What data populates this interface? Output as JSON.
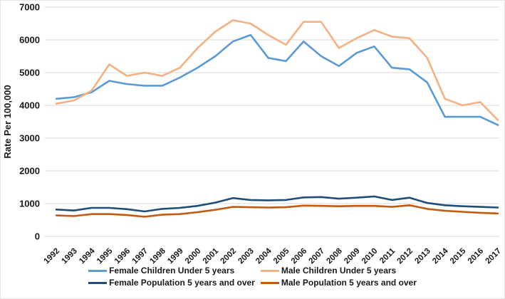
{
  "chart_data": {
    "type": "line",
    "ylabel": "Rate Per 100,000",
    "xlabel": "",
    "ylim": [
      0,
      7000
    ],
    "yticks": [
      0,
      1000,
      2000,
      3000,
      4000,
      5000,
      6000,
      7000
    ],
    "grid": "horizontal",
    "gridline_color": "#d9d9d9",
    "legend_position": "bottom",
    "x": [
      1992,
      1993,
      1994,
      1995,
      1996,
      1997,
      1998,
      1999,
      2000,
      2001,
      2002,
      2003,
      2004,
      2005,
      2006,
      2007,
      2008,
      2009,
      2010,
      2011,
      2012,
      2013,
      2014,
      2015,
      2016,
      2017
    ],
    "series": [
      {
        "name": "Female Children Under 5 years",
        "color": "#5B9BD5",
        "values": [
          4200,
          4250,
          4400,
          4750,
          4650,
          4600,
          4600,
          4850,
          5150,
          5500,
          5950,
          6150,
          5450,
          5350,
          5950,
          5500,
          5200,
          5600,
          5800,
          5150,
          5100,
          4700,
          3650,
          3650,
          3650,
          3400
        ]
      },
      {
        "name": "Male Children Under 5 years",
        "color": "#F4B183",
        "values": [
          4050,
          4150,
          4450,
          5250,
          4900,
          5000,
          4900,
          5150,
          5750,
          6250,
          6600,
          6500,
          6150,
          5850,
          6550,
          6550,
          5750,
          6050,
          6300,
          6100,
          6050,
          5450,
          4200,
          4000,
          4100,
          3550
        ]
      },
      {
        "name": "Female Population 5 years and over",
        "color": "#1F4E79",
        "values": [
          820,
          790,
          870,
          870,
          830,
          760,
          840,
          870,
          930,
          1030,
          1170,
          1110,
          1100,
          1110,
          1190,
          1200,
          1150,
          1180,
          1220,
          1110,
          1180,
          1020,
          950,
          920,
          900,
          880
        ]
      },
      {
        "name": "Male Population 5 years and over",
        "color": "#C55A11",
        "values": [
          640,
          620,
          680,
          680,
          650,
          600,
          660,
          680,
          740,
          810,
          900,
          890,
          880,
          890,
          940,
          930,
          920,
          930,
          930,
          900,
          950,
          840,
          780,
          750,
          720,
          700
        ]
      }
    ]
  }
}
